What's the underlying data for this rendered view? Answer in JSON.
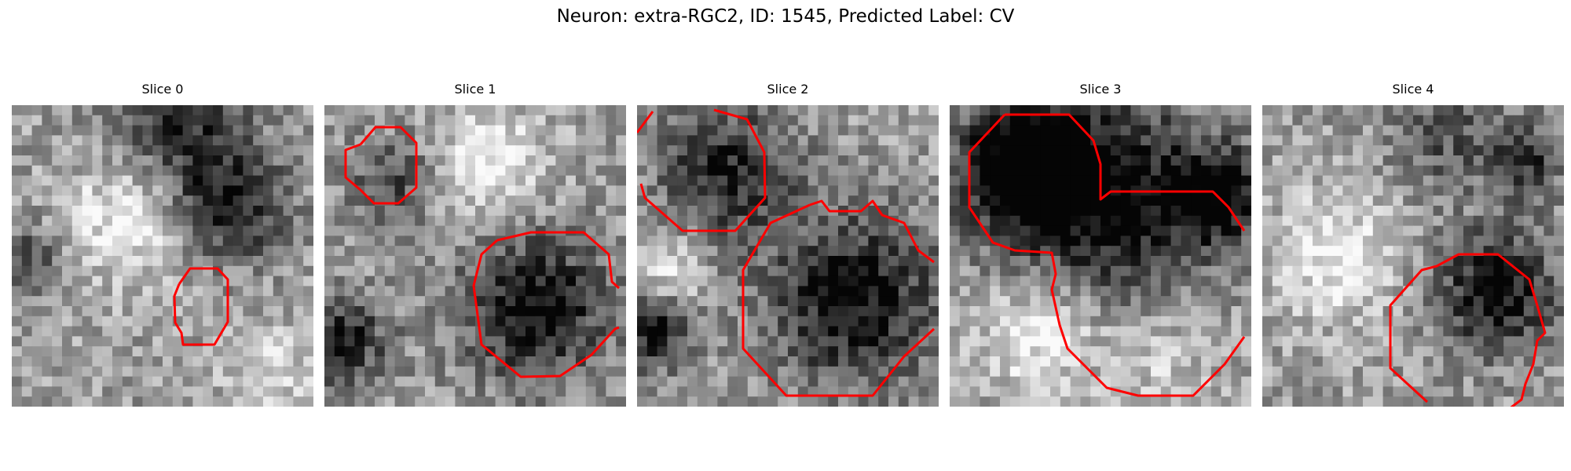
{
  "figure": {
    "title": "Neuron: extra-RGC2, ID: 1545, Predicted Label: CV",
    "outline_color": "#ff0000",
    "colormap": "grayscale"
  },
  "panels": [
    {
      "title": "Slice 0",
      "seed": 11,
      "blobs": [
        [
          0.72,
          0.33,
          0.18,
          0.55
        ],
        [
          0.55,
          0.05,
          0.22,
          0.45
        ],
        [
          0.07,
          0.52,
          0.12,
          0.35
        ]
      ],
      "lights": [
        [
          0.38,
          0.38,
          0.2,
          0.35
        ],
        [
          0.85,
          0.88,
          0.15,
          0.25
        ]
      ]
    },
    {
      "title": "Slice 1",
      "seed": 23,
      "blobs": [
        [
          0.7,
          0.67,
          0.24,
          0.6
        ],
        [
          0.22,
          0.25,
          0.14,
          0.35
        ],
        [
          0.06,
          0.78,
          0.15,
          0.5
        ]
      ],
      "lights": [
        [
          0.55,
          0.2,
          0.18,
          0.35
        ]
      ]
    },
    {
      "title": "Slice 2",
      "seed": 37,
      "blobs": [
        [
          0.3,
          0.22,
          0.22,
          0.5
        ],
        [
          0.72,
          0.65,
          0.28,
          0.6
        ],
        [
          0.05,
          0.75,
          0.12,
          0.55
        ]
      ],
      "lights": [
        [
          0.12,
          0.55,
          0.1,
          0.3
        ]
      ]
    },
    {
      "title": "Slice 3",
      "seed": 51,
      "blobs": [
        [
          0.25,
          0.2,
          0.22,
          0.75
        ],
        [
          0.55,
          0.32,
          0.35,
          0.6
        ],
        [
          0.9,
          0.3,
          0.15,
          0.55
        ]
      ],
      "lights": [
        [
          0.3,
          0.75,
          0.2,
          0.35
        ],
        [
          0.7,
          0.82,
          0.2,
          0.2
        ]
      ]
    },
    {
      "title": "Slice 4",
      "seed": 67,
      "blobs": [
        [
          0.78,
          0.62,
          0.2,
          0.6
        ],
        [
          0.6,
          0.1,
          0.18,
          0.3
        ],
        [
          0.88,
          0.18,
          0.12,
          0.45
        ]
      ],
      "lights": [
        [
          0.25,
          0.5,
          0.2,
          0.35
        ]
      ]
    }
  ]
}
